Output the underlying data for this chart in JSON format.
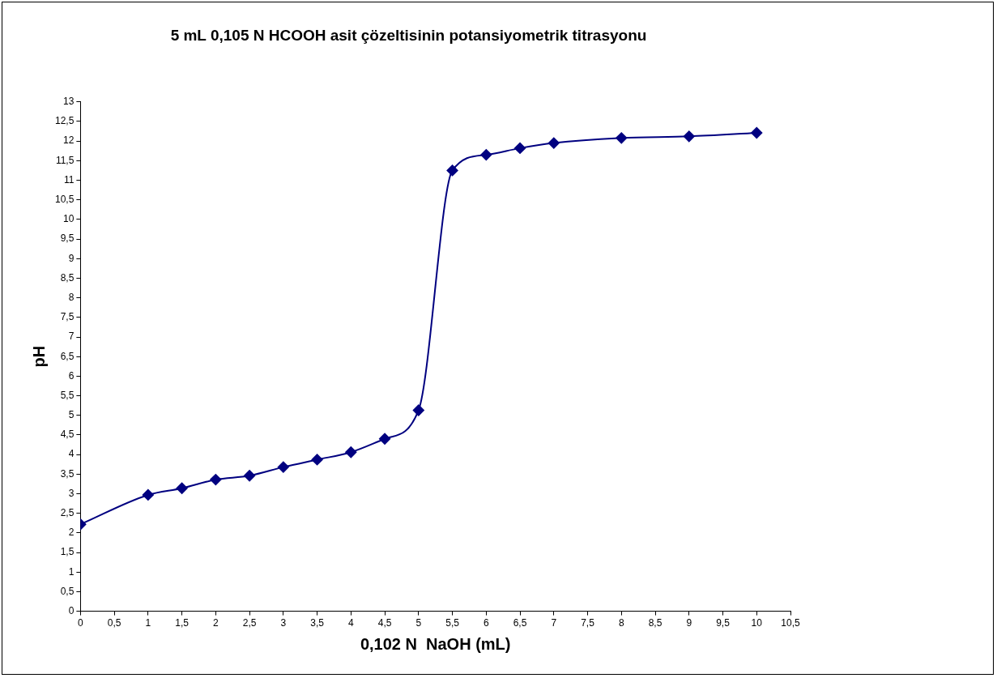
{
  "chart_data": {
    "type": "line",
    "title": "5 mL 0,105 N HCOOH asit çözeltisinin potansiyometrik titrasyonu",
    "xlabel": "0,102 N  NaOH (mL)",
    "ylabel": "pH",
    "x": [
      0,
      1,
      1.5,
      2,
      2.5,
      3,
      3.5,
      4,
      4.5,
      5,
      5.5,
      6,
      6.5,
      7,
      8,
      9,
      10
    ],
    "series": [
      {
        "color": "#000080",
        "values": [
          2.22,
          2.97,
          3.14,
          3.36,
          3.46,
          3.68,
          3.87,
          4.06,
          4.4,
          5.13,
          11.25,
          11.65,
          11.82,
          11.95,
          12.08,
          12.12,
          12.21
        ]
      }
    ],
    "xlim": [
      0,
      10.5
    ],
    "xticks": [
      0,
      {
        "value": 0.5,
        "label": "0,5"
      },
      1,
      {
        "value": 1.5,
        "label": "1,5"
      },
      2,
      {
        "value": 2.5,
        "label": "2,5"
      },
      3,
      {
        "value": 3.5,
        "label": "3,5"
      },
      4,
      {
        "value": 4.5,
        "label": "4,5"
      },
      5,
      {
        "value": 5.5,
        "label": "5,5"
      },
      6,
      {
        "value": 6.5,
        "label": "6,5"
      },
      7,
      {
        "value": 7.5,
        "label": "7,5"
      },
      8,
      {
        "value": 8.5,
        "label": "8,5"
      },
      9,
      {
        "value": 9.5,
        "label": "9,5"
      },
      10,
      {
        "value": 10.5,
        "label": "10,5"
      }
    ],
    "ylim": [
      0,
      13
    ],
    "yticks": [
      0,
      {
        "value": 0.5,
        "label": "0,5"
      },
      1,
      {
        "value": 1.5,
        "label": "1,5"
      },
      2,
      {
        "value": 2.5,
        "label": "2,5"
      },
      3,
      {
        "value": 3.5,
        "label": "3,5"
      },
      4,
      {
        "value": 4.5,
        "label": "4,5"
      },
      5,
      {
        "value": 5.5,
        "label": "5,5"
      },
      6,
      {
        "value": 6.5,
        "label": "6,5"
      },
      7,
      {
        "value": 7.5,
        "label": "7,5"
      },
      8,
      {
        "value": 8.5,
        "label": "8,5"
      },
      9,
      {
        "value": 9.5,
        "label": "9,5"
      },
      10,
      {
        "value": 10.5,
        "label": "10,5"
      },
      11,
      {
        "value": 11.5,
        "label": "11,5"
      },
      12,
      {
        "value": 12.5,
        "label": "12,5"
      },
      13
    ],
    "grid": false,
    "legend": false,
    "marker": "diamond",
    "line_style": "solid"
  }
}
